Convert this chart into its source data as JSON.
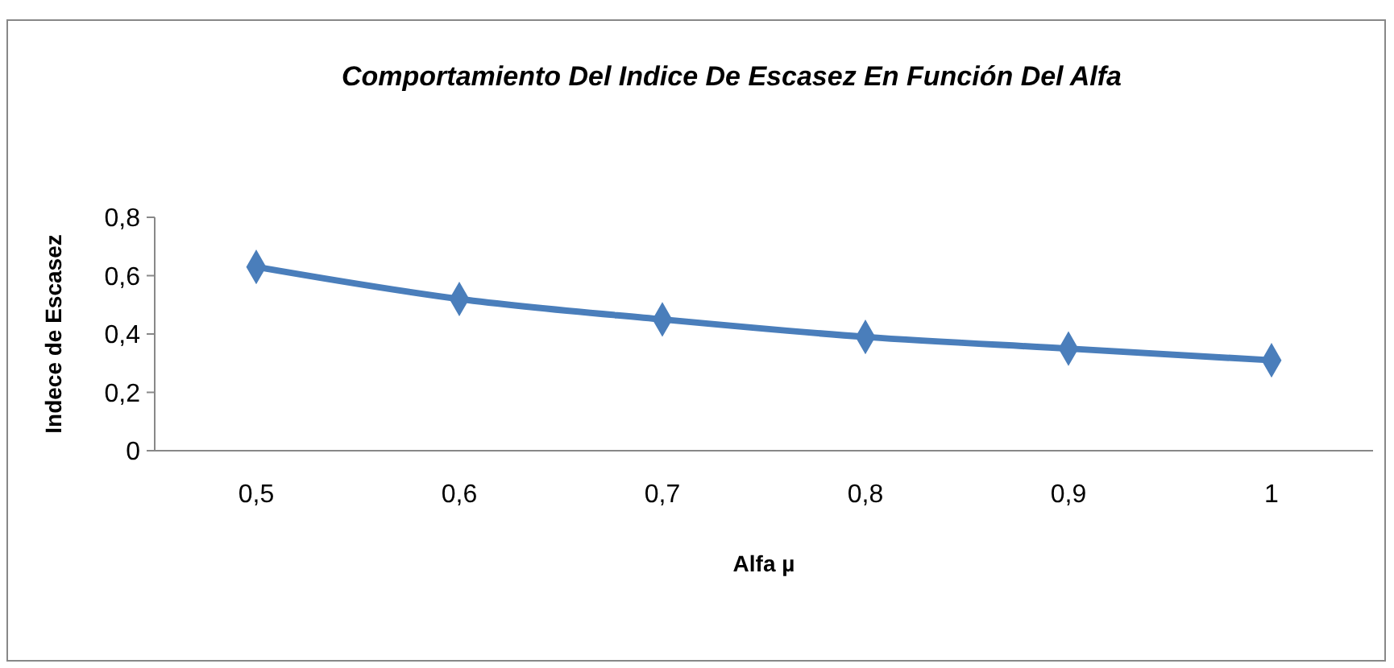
{
  "chart_data": {
    "type": "line",
    "title": "Comportamiento Del Indice De Escasez En Función Del Alfa",
    "xlabel": "Alfa µ",
    "ylabel": "Indece de Escasez",
    "categories": [
      "0,5",
      "0,6",
      "0,7",
      "0,8",
      "0,9",
      "1"
    ],
    "series": [
      {
        "color": "#4a7ebb",
        "values": [
          0.63,
          0.52,
          0.45,
          0.39,
          0.35,
          0.31
        ]
      }
    ],
    "ylim": [
      0,
      0.8
    ],
    "yticks": [
      {
        "value": 0,
        "label": "0"
      },
      {
        "value": 0.2,
        "label": "0,2"
      },
      {
        "value": 0.4,
        "label": "0,4"
      },
      {
        "value": 0.6,
        "label": "0,6"
      },
      {
        "value": 0.8,
        "label": "0,8"
      }
    ],
    "grid": false,
    "marker": "diamond",
    "line_style": "solid"
  }
}
